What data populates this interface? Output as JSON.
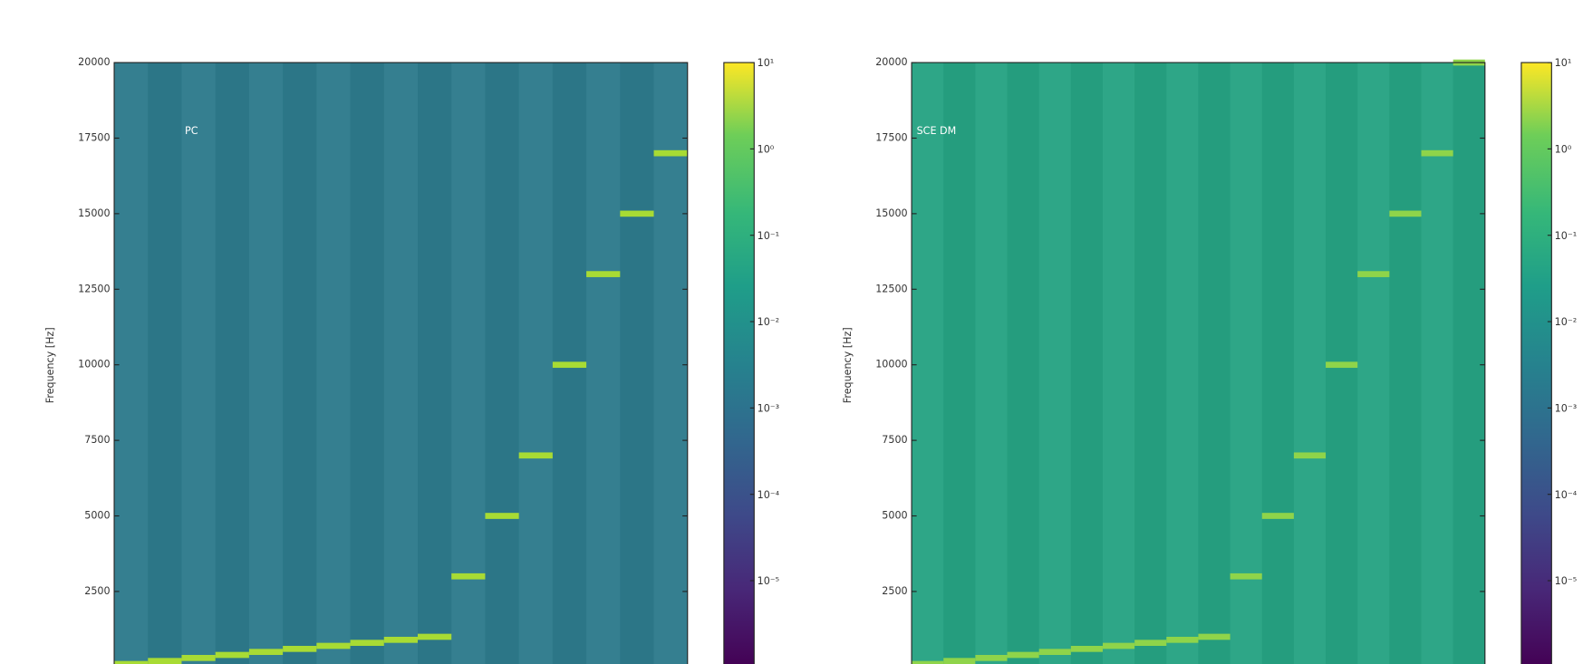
{
  "chart_data": [
    {
      "type": "spectrogram",
      "title": "PC",
      "ylabel": "Frequency [Hz]",
      "ylim": [
        0,
        20000
      ],
      "yticks": [
        2500,
        5000,
        7500,
        10000,
        12500,
        15000,
        17500,
        20000
      ],
      "values": [
        100,
        200,
        300,
        400,
        500,
        600,
        700,
        800,
        900,
        1000,
        3000,
        5000,
        7000,
        10000,
        13000,
        15000,
        17000
      ],
      "background": "#2e7b8c",
      "tone_color": "#a8db34",
      "colorbar": {
        "scale": "log",
        "lim": [
          1e-06,
          10
        ],
        "ticks": [
          {
            "value": 10,
            "label": "10¹"
          },
          {
            "value": 1,
            "label": "10⁰"
          },
          {
            "value": 0.1,
            "label": "10⁻¹"
          },
          {
            "value": 0.01,
            "label": "10⁻²"
          },
          {
            "value": 0.001,
            "label": "10⁻³"
          },
          {
            "value": 0.0001,
            "label": "10⁻⁴"
          },
          {
            "value": 1e-05,
            "label": "10⁻⁵"
          }
        ]
      }
    },
    {
      "type": "spectrogram",
      "title": "SCE DM",
      "ylabel": "Frequency [Hz]",
      "ylim": [
        0,
        20000
      ],
      "yticks": [
        2500,
        5000,
        7500,
        10000,
        12500,
        15000,
        17500,
        20000
      ],
      "values": [
        100,
        200,
        300,
        400,
        500,
        600,
        700,
        800,
        900,
        1000,
        3000,
        5000,
        7000,
        10000,
        13000,
        15000,
        17000,
        20000
      ],
      "background": "#27a383",
      "tone_color": "#8fd44a",
      "colorbar": {
        "scale": "log",
        "lim": [
          1e-06,
          10
        ],
        "ticks": [
          {
            "value": 10,
            "label": "10¹"
          },
          {
            "value": 1,
            "label": "10⁰"
          },
          {
            "value": 0.1,
            "label": "10⁻¹"
          },
          {
            "value": 0.01,
            "label": "10⁻²"
          },
          {
            "value": 0.001,
            "label": "10⁻³"
          },
          {
            "value": 0.0001,
            "label": "10⁻⁴"
          },
          {
            "value": 1e-05,
            "label": "10⁻⁵"
          }
        ]
      }
    }
  ]
}
